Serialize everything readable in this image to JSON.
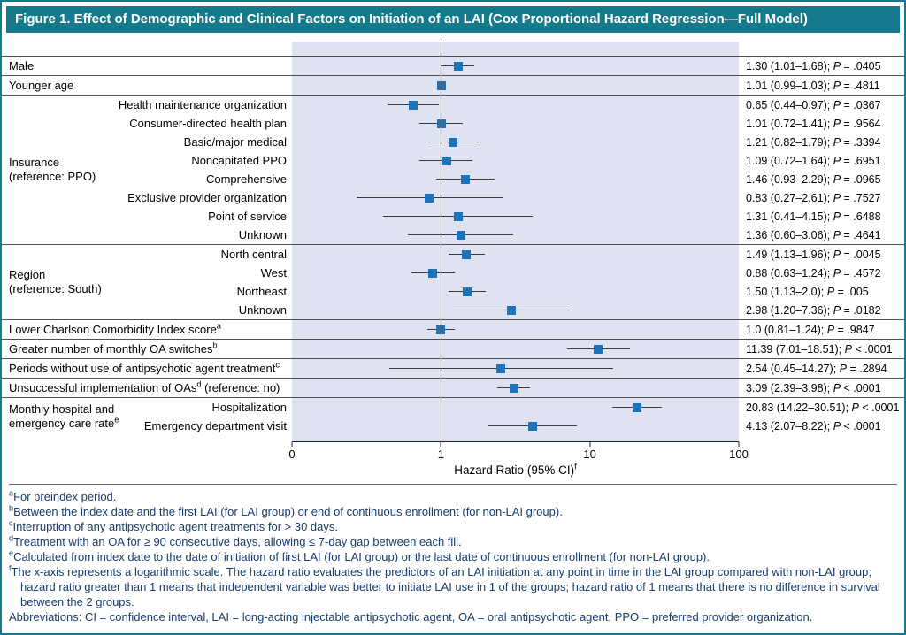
{
  "figure": {
    "title": "Figure 1. Effect of Demographic and Clinical Factors on Initiation of an LAI (Cox Proportional Hazard Regression—Full Model)"
  },
  "colors": {
    "title_bar": "#147a8c",
    "plot_band": "#dfe3f1",
    "marker": "#1b74ba",
    "footnote_text": "#173c6d"
  },
  "chart_data": {
    "type": "scatter",
    "subtype": "forest-plot",
    "scale": "log10",
    "xlim": [
      0.1,
      100
    ],
    "x_ticks": [
      "0",
      "1",
      "10",
      "100"
    ],
    "x_tick_values": [
      0.1,
      1,
      10,
      100
    ],
    "xlabel": "Hazard Ratio (95% CI)",
    "xlabel_sup": "f",
    "reference_line": 1,
    "groups": [
      {
        "rows": [
          {
            "label": "Male",
            "hr": 1.3,
            "lo": 1.01,
            "hi": 1.68,
            "est": "1.30 (1.01–1.68)",
            "p": "= .0405"
          }
        ]
      },
      {
        "rows": [
          {
            "label": "Younger age",
            "hr": 1.01,
            "lo": 0.99,
            "hi": 1.03,
            "est": "1.01 (0.99–1.03)",
            "p": "= .4811"
          }
        ]
      },
      {
        "label_lines": [
          "Insurance",
          "(reference: PPO)"
        ],
        "rows": [
          {
            "label": "Health maintenance organization",
            "hr": 0.65,
            "lo": 0.44,
            "hi": 0.97,
            "est": "0.65 (0.44–0.97)",
            "p": "= .0367"
          },
          {
            "label": "Consumer-directed health plan",
            "hr": 1.01,
            "lo": 0.72,
            "hi": 1.41,
            "est": "1.01 (0.72–1.41)",
            "p": "= .9564"
          },
          {
            "label": "Basic/major medical",
            "hr": 1.21,
            "lo": 0.82,
            "hi": 1.79,
            "est": "1.21 (0.82–1.79)",
            "p": "= .3394"
          },
          {
            "label": "Noncapitated PPO",
            "hr": 1.09,
            "lo": 0.72,
            "hi": 1.64,
            "est": "1.09 (0.72–1.64)",
            "p": "= .6951"
          },
          {
            "label": "Comprehensive",
            "hr": 1.46,
            "lo": 0.93,
            "hi": 2.29,
            "est": "1.46 (0.93–2.29)",
            "p": "= .0965"
          },
          {
            "label": "Exclusive provider organization",
            "hr": 0.83,
            "lo": 0.27,
            "hi": 2.61,
            "est": "0.83 (0.27–2.61)",
            "p": "= .7527"
          },
          {
            "label": "Point of service",
            "hr": 1.31,
            "lo": 0.41,
            "hi": 4.15,
            "est": "1.31 (0.41–4.15)",
            "p": "= .6488"
          },
          {
            "label": "Unknown",
            "hr": 1.36,
            "lo": 0.6,
            "hi": 3.06,
            "est": "1.36 (0.60–3.06)",
            "p": "= .4641"
          }
        ]
      },
      {
        "label_lines": [
          "Region",
          "(reference: South)"
        ],
        "rows": [
          {
            "label": "North central",
            "hr": 1.49,
            "lo": 1.13,
            "hi": 1.96,
            "est": "1.49 (1.13–1.96)",
            "p": "= .0045"
          },
          {
            "label": "West",
            "hr": 0.88,
            "lo": 0.63,
            "hi": 1.24,
            "est": "0.88 (0.63–1.24)",
            "p": "= .4572"
          },
          {
            "label": "Northeast",
            "hr": 1.5,
            "lo": 1.13,
            "hi": 2.0,
            "est": "1.50 (1.13–2.0)",
            "p": "= .005"
          },
          {
            "label": "Unknown",
            "hr": 2.98,
            "lo": 1.2,
            "hi": 7.36,
            "est": "2.98 (1.20–7.36)",
            "p": "= .0182"
          }
        ]
      },
      {
        "rows": [
          {
            "label": "Lower Charlson Comorbidity Index score",
            "sup": "a",
            "hr": 1.0,
            "lo": 0.81,
            "hi": 1.24,
            "est": "1.0 (0.81–1.24)",
            "p": "= .9847"
          }
        ]
      },
      {
        "rows": [
          {
            "label": "Greater number of monthly OA switches",
            "sup": "b",
            "hr": 11.39,
            "lo": 7.01,
            "hi": 18.51,
            "est": "11.39 (7.01–18.51)",
            "p": "< .0001"
          }
        ]
      },
      {
        "rows": [
          {
            "label": "Periods without use of antipsychotic agent treatment",
            "sup": "c",
            "hr": 2.54,
            "lo": 0.45,
            "hi": 14.27,
            "est": "2.54 (0.45–14.27)",
            "p": "= .2894"
          }
        ]
      },
      {
        "rows": [
          {
            "label": "Unsuccessful implementation of OAs",
            "sup": "d",
            "suffix": " (reference: no)",
            "hr": 3.09,
            "lo": 2.39,
            "hi": 3.98,
            "est": "3.09 (2.39–3.98)",
            "p": "< .0001"
          }
        ]
      },
      {
        "label_lines": [
          "Monthly hospital and",
          "emergency care rate"
        ],
        "label_sup": "e",
        "rows": [
          {
            "label": "Hospitalization",
            "hr": 20.83,
            "lo": 14.22,
            "hi": 30.51,
            "est": "20.83 (14.22–30.51)",
            "p": "< .0001"
          },
          {
            "label": "Emergency department visit",
            "hr": 4.13,
            "lo": 2.07,
            "hi": 8.22,
            "est": "4.13 (2.07–8.22)",
            "p": "< .0001"
          }
        ]
      }
    ]
  },
  "footnotes": [
    {
      "sup": "a",
      "text": "For preindex period."
    },
    {
      "sup": "b",
      "text": "Between the index date and the first LAI (for LAI group) or end of continuous enrollment (for non-LAI group)."
    },
    {
      "sup": "c",
      "text": "Interruption of any antipsychotic agent treatments for > 30 days."
    },
    {
      "sup": "d",
      "text": "Treatment with an OA for ≥ 90 consecutive days, allowing ≤ 7-day gap between each fill."
    },
    {
      "sup": "e",
      "text": "Calculated from index date to the date of initiation of first LAI (for LAI group) or the last date of continuous enrollment (for non-LAI group)."
    },
    {
      "sup": "f",
      "text": "The x-axis represents a logarithmic scale. The hazard ratio evaluates the predictors of an LAI initiation at any point in time in the LAI group compared with non-LAI group; hazard ratio greater than 1 means that independent variable was better to initiate LAI use in 1 of the groups; hazard ratio of 1 means that there is no difference in survival between the 2 groups."
    },
    {
      "sup": "",
      "text": "Abbreviations: CI = confidence interval, LAI = long-acting injectable antipsychotic agent, OA = oral antipsychotic agent, PPO = preferred provider organization."
    }
  ]
}
